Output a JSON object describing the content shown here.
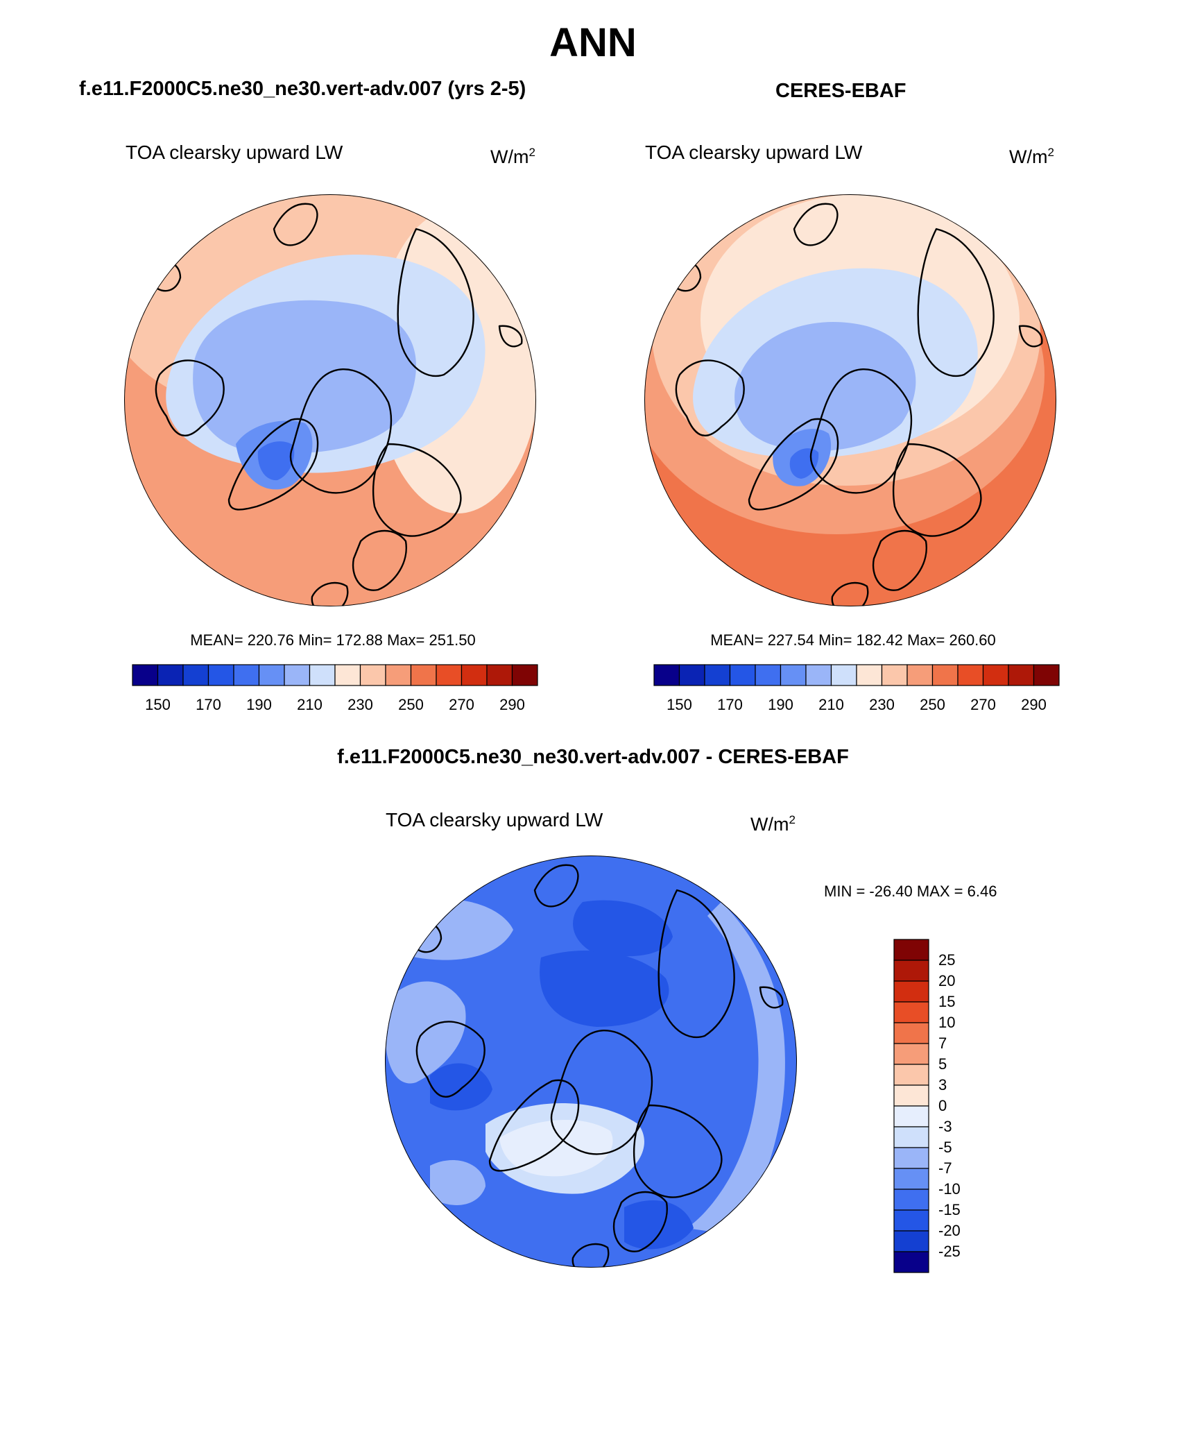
{
  "header": {
    "title": "ANN",
    "left_subtitle": "f.e11.F2000C5.ne30_ne30.vert-adv.007 (yrs 2-5)",
    "right_subtitle": "CERES-EBAF",
    "diff_subtitle": "f.e11.F2000C5.ne30_ne30.vert-adv.007 - CERES-EBAF"
  },
  "panels": {
    "model": {
      "variable": "TOA clearsky upward LW",
      "units": "W/m",
      "units_sup": "2",
      "stats": "MEAN= 220.76  Min= 172.88  Max= 251.50"
    },
    "obs": {
      "variable": "TOA clearsky upward LW",
      "units": "W/m",
      "units_sup": "2",
      "stats": "MEAN= 227.54  Min= 182.42  Max= 260.60"
    },
    "diff": {
      "variable": "TOA clearsky upward LW",
      "units": "W/m",
      "units_sup": "2",
      "stats": "MIN = -26.40 MAX =   6.46"
    }
  },
  "chart_data": [
    {
      "type": "heatmap",
      "projection": "north-polar-stereographic",
      "title": "TOA clearsky upward LW",
      "case": "f.e11.F2000C5.ne30_ne30.vert-adv.007 (yrs 2-5)",
      "units": "W/m2",
      "mean": 220.76,
      "min": 172.88,
      "max": 251.5,
      "colorbar": {
        "levels": [
          150,
          160,
          170,
          180,
          190,
          200,
          210,
          220,
          230,
          240,
          250,
          260,
          270,
          280,
          290
        ],
        "tick_labels": [
          "150",
          "170",
          "190",
          "210",
          "230",
          "250",
          "270",
          "290"
        ],
        "colors": [
          "#08008a",
          "#0a23b4",
          "#1440d2",
          "#2456e6",
          "#3f6ff0",
          "#6690f5",
          "#9ab5f8",
          "#cfe0fb",
          "#fde6d6",
          "#fbc7ab",
          "#f69d79",
          "#f0744a",
          "#e84e26",
          "#d22e10",
          "#ae1808",
          "#7f0404"
        ]
      }
    },
    {
      "type": "heatmap",
      "projection": "north-polar-stereographic",
      "title": "TOA clearsky upward LW",
      "case": "CERES-EBAF",
      "units": "W/m2",
      "mean": 227.54,
      "min": 182.42,
      "max": 260.6,
      "colorbar": {
        "levels": [
          150,
          160,
          170,
          180,
          190,
          200,
          210,
          220,
          230,
          240,
          250,
          260,
          270,
          280,
          290
        ],
        "tick_labels": [
          "150",
          "170",
          "190",
          "210",
          "230",
          "250",
          "270",
          "290"
        ],
        "colors": [
          "#08008a",
          "#0a23b4",
          "#1440d2",
          "#2456e6",
          "#3f6ff0",
          "#6690f5",
          "#9ab5f8",
          "#cfe0fb",
          "#fde6d6",
          "#fbc7ab",
          "#f69d79",
          "#f0744a",
          "#e84e26",
          "#d22e10",
          "#ae1808",
          "#7f0404"
        ]
      }
    },
    {
      "type": "heatmap",
      "projection": "north-polar-stereographic",
      "title": "TOA clearsky upward LW",
      "case": "f.e11.F2000C5.ne30_ne30.vert-adv.007 - CERES-EBAF",
      "units": "W/m2",
      "min": -26.4,
      "max": 6.46,
      "colorbar": {
        "levels": [
          25,
          20,
          15,
          10,
          7,
          5,
          3,
          0,
          -3,
          -5,
          -7,
          -10,
          -15,
          -20,
          -25
        ],
        "tick_labels": [
          "25",
          "20",
          "15",
          "10",
          "7",
          "5",
          "3",
          "0",
          "-3",
          "-5",
          "-7",
          "-10",
          "-15",
          "-20",
          "-25"
        ],
        "colors": [
          "#7f0404",
          "#ae1808",
          "#d22e10",
          "#e84e26",
          "#f0744a",
          "#f69d79",
          "#fbc7ab",
          "#fde6d6",
          "#e6eefd",
          "#cfe0fb",
          "#9ab5f8",
          "#6690f5",
          "#3f6ff0",
          "#2456e6",
          "#1440d2",
          "#08008a"
        ]
      }
    }
  ]
}
